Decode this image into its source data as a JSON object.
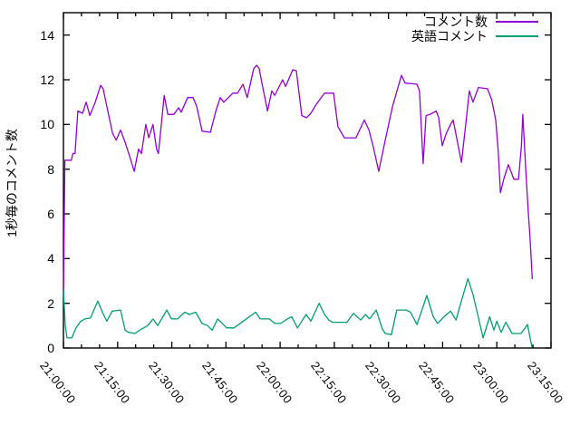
{
  "figure": {
    "background_color": "#ffffff",
    "border_color": "#000000"
  },
  "chart_data": {
    "type": "line",
    "title": "",
    "xlabel": "",
    "ylabel": "1秒毎のコメント数",
    "grid": false,
    "legend_position": "top-right-inside",
    "ylim": [
      0,
      15
    ],
    "y_ticks": [
      0,
      2,
      4,
      6,
      8,
      10,
      12,
      14
    ],
    "xlim_minutes": [
      0,
      135
    ],
    "x_minor_interval_minutes": 5,
    "x_major_interval_minutes": 15,
    "x_tick_minutes": [
      0,
      15,
      30,
      45,
      60,
      75,
      90,
      105,
      120,
      135
    ],
    "x_tick_labels": [
      "21:00:00",
      "21:15:00",
      "21:30:00",
      "21:45:00",
      "22:00:00",
      "22:15:00",
      "22:30:00",
      "22:45:00",
      "23:00:00",
      "23:15:00"
    ],
    "x_unit": "minutes after 21:00:00",
    "series": [
      {
        "name": "コメント数",
        "color": "#9400d3",
        "points": [
          [
            0,
            2.4
          ],
          [
            0.4,
            8.4
          ],
          [
            2.2,
            8.4
          ],
          [
            2.6,
            8.7
          ],
          [
            3.2,
            8.7
          ],
          [
            4.0,
            10.6
          ],
          [
            5.3,
            10.5
          ],
          [
            6.3,
            11.0
          ],
          [
            7.3,
            10.4
          ],
          [
            8.8,
            11.0
          ],
          [
            10.3,
            11.75
          ],
          [
            11.0,
            11.6
          ],
          [
            12.3,
            10.6
          ],
          [
            13.6,
            9.6
          ],
          [
            14.6,
            9.3
          ],
          [
            15.8,
            9.75
          ],
          [
            17.1,
            9.2
          ],
          [
            18.3,
            8.6
          ],
          [
            19.6,
            7.9
          ],
          [
            20.8,
            8.9
          ],
          [
            21.6,
            8.7
          ],
          [
            22.8,
            10.0
          ],
          [
            23.6,
            9.4
          ],
          [
            24.8,
            10.0
          ],
          [
            25.8,
            8.9
          ],
          [
            26.3,
            8.7
          ],
          [
            27.9,
            11.3
          ],
          [
            28.9,
            10.45
          ],
          [
            30.6,
            10.45
          ],
          [
            31.9,
            10.75
          ],
          [
            32.6,
            10.55
          ],
          [
            34.4,
            11.2
          ],
          [
            35.9,
            11.2
          ],
          [
            36.9,
            10.8
          ],
          [
            38.4,
            9.7
          ],
          [
            40.7,
            9.65
          ],
          [
            42.2,
            10.6
          ],
          [
            43.4,
            11.2
          ],
          [
            44.4,
            11.0
          ],
          [
            45.7,
            11.2
          ],
          [
            46.9,
            11.4
          ],
          [
            48.2,
            11.4
          ],
          [
            49.7,
            11.8
          ],
          [
            50.9,
            11.2
          ],
          [
            52.7,
            12.5
          ],
          [
            53.5,
            12.65
          ],
          [
            54.2,
            12.5
          ],
          [
            54.9,
            11.9
          ],
          [
            56.5,
            10.6
          ],
          [
            57.7,
            11.5
          ],
          [
            58.5,
            11.3
          ],
          [
            60.7,
            12.0
          ],
          [
            61.5,
            11.7
          ],
          [
            63.5,
            12.45
          ],
          [
            64.5,
            12.4
          ],
          [
            66.0,
            10.4
          ],
          [
            67.3,
            10.3
          ],
          [
            68.5,
            10.5
          ],
          [
            70.0,
            10.9
          ],
          [
            72.3,
            11.4
          ],
          [
            74.8,
            11.4
          ],
          [
            76.0,
            9.9
          ],
          [
            77.8,
            9.4
          ],
          [
            81.0,
            9.4
          ],
          [
            83.3,
            10.2
          ],
          [
            84.6,
            9.75
          ],
          [
            85.8,
            9.0
          ],
          [
            87.3,
            7.9
          ],
          [
            89.1,
            9.3
          ],
          [
            91.1,
            10.8
          ],
          [
            93.6,
            12.2
          ],
          [
            94.6,
            11.85
          ],
          [
            97.9,
            11.8
          ],
          [
            98.6,
            11.5
          ],
          [
            99.6,
            8.25
          ],
          [
            100.4,
            10.4
          ],
          [
            101.5,
            10.45
          ],
          [
            103.2,
            10.6
          ],
          [
            103.9,
            10.3
          ],
          [
            104.9,
            9.05
          ],
          [
            106.0,
            9.6
          ],
          [
            107.2,
            10.0
          ],
          [
            107.9,
            10.2
          ],
          [
            109.0,
            9.3
          ],
          [
            110.2,
            8.3
          ],
          [
            111.4,
            10.0
          ],
          [
            112.4,
            11.5
          ],
          [
            113.4,
            11.0
          ],
          [
            114.9,
            11.65
          ],
          [
            117.4,
            11.6
          ],
          [
            118.6,
            11.1
          ],
          [
            119.7,
            10.2
          ],
          [
            120.4,
            8.8
          ],
          [
            121.0,
            6.95
          ],
          [
            122.0,
            7.6
          ],
          [
            123.2,
            8.2
          ],
          [
            124.7,
            7.55
          ],
          [
            126.0,
            7.55
          ],
          [
            126.8,
            9.0
          ],
          [
            127.2,
            10.45
          ],
          [
            128.0,
            8.0
          ],
          [
            128.7,
            6.1
          ],
          [
            129.2,
            4.9
          ],
          [
            129.8,
            3.1
          ]
        ]
      },
      {
        "name": "英語コメント",
        "color": "#009e73",
        "points": [
          [
            0,
            2.6
          ],
          [
            0.5,
            1.0
          ],
          [
            1.0,
            0.45
          ],
          [
            2.3,
            0.45
          ],
          [
            3.5,
            0.9
          ],
          [
            4.8,
            1.2
          ],
          [
            6.0,
            1.3
          ],
          [
            7.5,
            1.35
          ],
          [
            9.5,
            2.1
          ],
          [
            10.8,
            1.6
          ],
          [
            12.0,
            1.2
          ],
          [
            13.5,
            1.65
          ],
          [
            15.8,
            1.7
          ],
          [
            17.1,
            0.8
          ],
          [
            18.0,
            0.7
          ],
          [
            19.8,
            0.65
          ],
          [
            21.1,
            0.8
          ],
          [
            23.3,
            1.0
          ],
          [
            24.8,
            1.3
          ],
          [
            26.1,
            1.0
          ],
          [
            27.9,
            1.5
          ],
          [
            28.6,
            1.7
          ],
          [
            29.9,
            1.3
          ],
          [
            31.6,
            1.3
          ],
          [
            32.9,
            1.5
          ],
          [
            33.6,
            1.6
          ],
          [
            34.9,
            1.5
          ],
          [
            36.6,
            1.6
          ],
          [
            38.4,
            1.1
          ],
          [
            39.9,
            1.0
          ],
          [
            41.2,
            0.8
          ],
          [
            42.7,
            1.3
          ],
          [
            45.2,
            0.9
          ],
          [
            47.2,
            0.9
          ],
          [
            50.2,
            1.25
          ],
          [
            53.2,
            1.6
          ],
          [
            54.5,
            1.3
          ],
          [
            57.0,
            1.3
          ],
          [
            58.5,
            1.1
          ],
          [
            60.2,
            1.1
          ],
          [
            62.0,
            1.3
          ],
          [
            63.2,
            1.4
          ],
          [
            64.8,
            0.9
          ],
          [
            67.2,
            1.5
          ],
          [
            68.5,
            1.2
          ],
          [
            70.8,
            2.0
          ],
          [
            72.3,
            1.5
          ],
          [
            73.5,
            1.25
          ],
          [
            74.5,
            1.15
          ],
          [
            78.5,
            1.15
          ],
          [
            80.3,
            1.55
          ],
          [
            82.3,
            1.25
          ],
          [
            83.6,
            1.5
          ],
          [
            84.8,
            1.3
          ],
          [
            86.6,
            1.7
          ],
          [
            88.3,
            0.85
          ],
          [
            89.1,
            0.65
          ],
          [
            90.8,
            0.6
          ],
          [
            92.3,
            1.7
          ],
          [
            94.9,
            1.7
          ],
          [
            96.1,
            1.6
          ],
          [
            97.9,
            1.05
          ],
          [
            99.9,
            2.0
          ],
          [
            100.6,
            2.35
          ],
          [
            102.4,
            1.4
          ],
          [
            103.6,
            1.1
          ],
          [
            105.4,
            1.4
          ],
          [
            107.2,
            1.65
          ],
          [
            108.7,
            1.25
          ],
          [
            110.0,
            2.0
          ],
          [
            112.0,
            3.1
          ],
          [
            113.4,
            2.4
          ],
          [
            114.7,
            1.5
          ],
          [
            116.2,
            0.45
          ],
          [
            118.0,
            1.4
          ],
          [
            119.2,
            0.8
          ],
          [
            120.0,
            1.2
          ],
          [
            121.2,
            0.7
          ],
          [
            122.5,
            1.15
          ],
          [
            124.2,
            0.65
          ],
          [
            126.7,
            0.65
          ],
          [
            128.5,
            1.05
          ],
          [
            129.7,
            0.05
          ]
        ]
      }
    ]
  }
}
